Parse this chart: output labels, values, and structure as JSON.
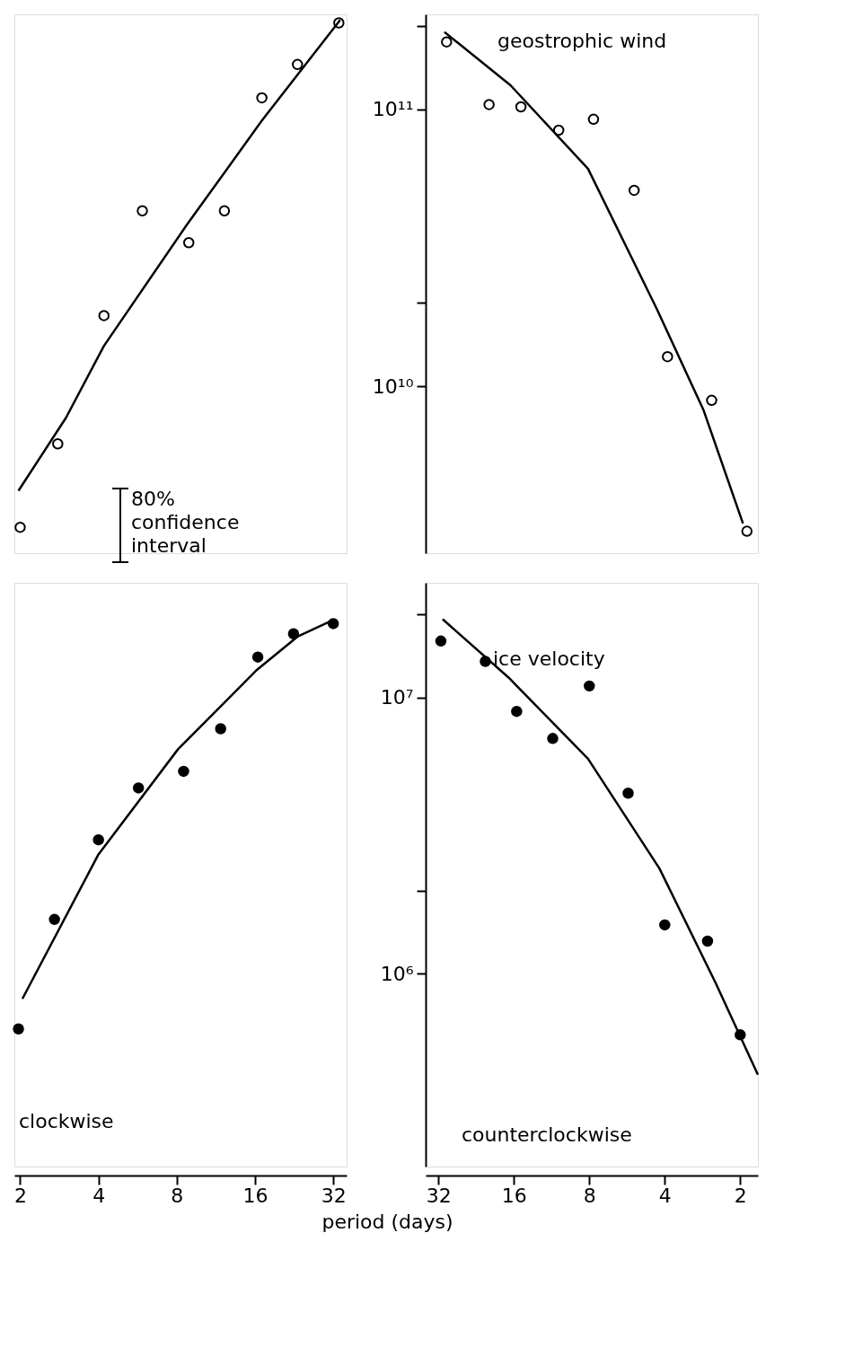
{
  "chart_data": [
    {
      "type": "scatter",
      "log": "xy",
      "tick_labels": false,
      "xlim": [
        1.9,
        36
      ],
      "ylim": [
        2500000000,
        220000000000
      ],
      "annotations": [
        "80% confidence interval"
      ],
      "series": [
        {
          "type": "scatter",
          "marker": "circle",
          "color": "#ffffff",
          "x": [
            2.0,
            2.79,
            4.2,
            5.9,
            8.9,
            12.2,
            17,
            23.3,
            33.6
          ],
          "values": [
            3100000000,
            6200000000,
            18000000000,
            43000000000,
            33000000000,
            43000000000,
            110000000000,
            145000000000,
            205000000000
          ]
        },
        {
          "type": "line",
          "color": "#000000",
          "x": [
            1.97,
            3.0,
            4.2,
            8.7,
            17,
            34
          ],
          "values": [
            4200000000,
            7700000000,
            14000000000,
            38000000000,
            91000000000,
            210000000000
          ]
        }
      ]
    },
    {
      "type": "scatter",
      "log": "xy",
      "tick_labels": "y",
      "xlim": [
        36,
        1.7
      ],
      "ylim": [
        2500000000,
        220000000000
      ],
      "yticks": [
        {
          "value": 10000000000,
          "label": "10¹⁰"
        },
        {
          "value": 20000000000,
          "label": null
        },
        {
          "value": 100000000000,
          "label": "10¹¹"
        },
        {
          "value": 200000000000,
          "label": null
        }
      ],
      "annotations": [
        "geostrophic wind"
      ],
      "series": [
        {
          "type": "scatter",
          "marker": "circle",
          "color": "#ffffff",
          "x": [
            29.7,
            20.1,
            15.0,
            10.6,
            7.7,
            5.3,
            3.9,
            2.6,
            1.88
          ],
          "values": [
            175000000000,
            104000000000,
            102000000000,
            84000000000,
            92000000000,
            51000000000,
            12800000000,
            8900000000,
            3000000000
          ]
        },
        {
          "type": "line",
          "color": "#000000",
          "x": [
            30.3,
            16.5,
            8.1,
            4.3,
            2.8,
            1.95
          ],
          "values": [
            190000000000,
            122000000000,
            61000000000,
            19000000000,
            8200000000,
            3200000000
          ]
        }
      ]
    },
    {
      "type": "scatter",
      "log": "xy",
      "tick_labels": "x",
      "xlim": [
        1.9,
        36
      ],
      "ylim": [
        200000,
        26000000
      ],
      "xticks": [
        2,
        4,
        8,
        16,
        32
      ],
      "xlabel": "period (days)",
      "annotations": [
        "clockwise"
      ],
      "series": [
        {
          "type": "scatter",
          "marker": "circle",
          "color": "#000000",
          "x": [
            1.97,
            2.71,
            4.0,
            5.7,
            8.5,
            11.8,
            16.4,
            22.5,
            32
          ],
          "values": [
            630000,
            1570000,
            3050000,
            4700000,
            5400000,
            7700000,
            14000000,
            17000000,
            18500000
          ]
        },
        {
          "type": "line",
          "color": "#000000",
          "x": [
            2.04,
            4.0,
            8.1,
            16.3,
            23.3,
            31.7
          ],
          "values": [
            810000,
            2700000,
            6500000,
            12600000,
            16600000,
            19000000
          ]
        }
      ]
    },
    {
      "type": "scatter",
      "log": "xy",
      "xlim": [
        36,
        1.7
      ],
      "ylim": [
        200000,
        26000000
      ],
      "xticks": [
        32,
        16,
        8,
        4,
        2
      ],
      "yticks": [
        {
          "value": 1000000,
          "label": "10⁶"
        },
        {
          "value": 2000000,
          "label": null
        },
        {
          "value": 10000000,
          "label": "10⁷"
        },
        {
          "value": 20000000,
          "label": null
        }
      ],
      "annotations": [
        "ice velocity",
        "counterclockwise"
      ],
      "series": [
        {
          "type": "scatter",
          "marker": "circle",
          "color": "#000000",
          "x": [
            31.3,
            20.8,
            15.6,
            11.2,
            8,
            5.6,
            4,
            2.7,
            2
          ],
          "values": [
            16000000,
            13500000,
            8900000,
            7100000,
            11000000,
            4500000,
            1500000,
            1310000,
            600000
          ]
        },
        {
          "type": "line",
          "color": "#000000",
          "x": [
            30.8,
            16.8,
            8.1,
            4.2,
            2.5,
            1.7
          ],
          "values": [
            19200000,
            11800000,
            6000000,
            2400000,
            920000,
            430000
          ]
        }
      ]
    }
  ]
}
